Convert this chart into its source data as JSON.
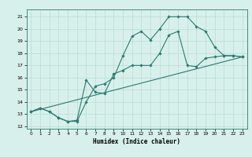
{
  "xlabel": "Humidex (Indice chaleur)",
  "bg_color": "#d8f0ec",
  "line_color": "#2a7a6f",
  "grid_color": "#b8dcd6",
  "xlim": [
    -0.5,
    23.5
  ],
  "ylim": [
    11.8,
    21.6
  ],
  "xticks": [
    0,
    1,
    2,
    3,
    4,
    5,
    6,
    7,
    8,
    9,
    10,
    11,
    12,
    13,
    14,
    15,
    16,
    17,
    18,
    19,
    20,
    21,
    22,
    23
  ],
  "yticks": [
    12,
    13,
    14,
    15,
    16,
    17,
    18,
    19,
    20,
    21
  ],
  "line1_x": [
    0,
    1,
    2,
    3,
    4,
    5,
    6,
    7,
    8,
    9,
    10,
    11,
    12,
    13,
    14,
    15,
    16,
    17,
    18,
    19,
    20,
    21,
    22,
    23
  ],
  "line1_y": [
    13.2,
    13.5,
    13.2,
    12.7,
    12.4,
    12.5,
    15.8,
    14.8,
    14.7,
    16.3,
    16.6,
    17.0,
    17.0,
    17.0,
    18.0,
    19.5,
    19.8,
    17.0,
    16.9,
    17.6,
    17.7,
    17.8,
    17.8,
    17.7
  ],
  "line2_x": [
    0,
    1,
    2,
    3,
    4,
    5,
    6,
    7,
    8,
    9,
    10,
    11,
    12,
    13,
    14,
    15,
    16,
    17,
    18,
    19,
    20,
    21,
    22,
    23
  ],
  "line2_y": [
    13.2,
    13.5,
    13.2,
    12.7,
    12.4,
    12.4,
    14.0,
    15.3,
    15.5,
    16.0,
    17.8,
    19.4,
    19.8,
    19.1,
    20.0,
    21.0,
    21.0,
    21.0,
    20.2,
    19.8,
    18.5,
    17.8,
    17.8,
    17.7
  ],
  "line3_x": [
    0,
    23
  ],
  "line3_y": [
    13.2,
    17.7
  ]
}
